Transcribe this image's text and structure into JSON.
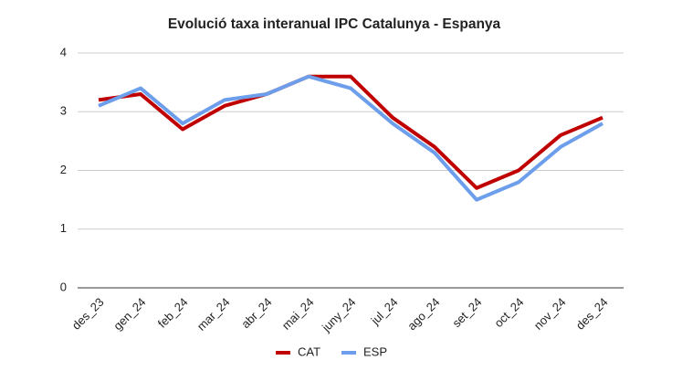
{
  "chart_data": {
    "type": "line",
    "title": "Evolució taxa interanual IPC Catalunya - Espanya",
    "categories": [
      "des_23",
      "gen_24",
      "feb_24",
      "mar_24",
      "abr_24",
      "mai_24",
      "juny_24",
      "jul_24",
      "ago_24",
      "set_24",
      "oct_24",
      "nov_24",
      "des_24"
    ],
    "series": [
      {
        "name": "CAT",
        "color": "#c00000",
        "values": [
          3.2,
          3.3,
          2.7,
          3.1,
          3.3,
          3.6,
          3.6,
          2.9,
          2.4,
          1.7,
          2.0,
          2.6,
          2.9
        ]
      },
      {
        "name": "ESP",
        "color": "#6d9eeb",
        "values": [
          3.1,
          3.4,
          2.8,
          3.2,
          3.3,
          3.6,
          3.4,
          2.8,
          2.3,
          1.5,
          1.8,
          2.4,
          2.8
        ]
      }
    ],
    "ylim": [
      0,
      4
    ],
    "yticks": [
      0,
      1,
      2,
      3,
      4
    ],
    "grid": true,
    "legend": "bottom"
  }
}
